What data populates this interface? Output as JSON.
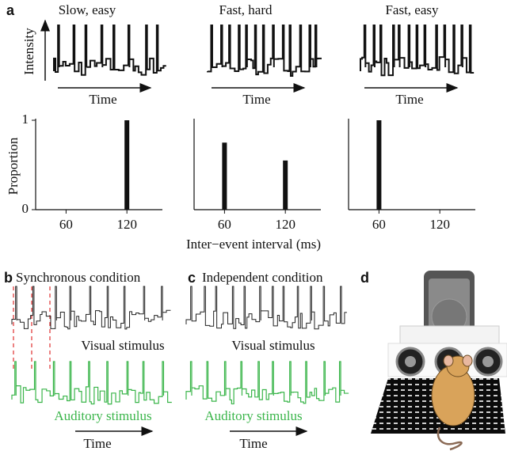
{
  "panel_a": {
    "label": "a",
    "traces": [
      {
        "ylabel": "Intensity",
        "xlabel": "Time"
      },
      {
        "xlabel": "Time"
      },
      {
        "xlabel": "Time"
      }
    ]
  },
  "chart_data": [
    {
      "type": "bar",
      "title": "Slow, easy",
      "x": [
        120
      ],
      "values": [
        1
      ],
      "color": "#111111",
      "xlim": [
        30,
        155
      ],
      "xticks": [
        60,
        120
      ],
      "ylim": [
        0,
        1
      ],
      "yticks": [
        0,
        1
      ],
      "ylabel": "Proportion"
    },
    {
      "type": "bar",
      "title": "Fast, hard",
      "x": [
        60,
        120
      ],
      "values": [
        0.75,
        0.55
      ],
      "color": "#111111",
      "xlim": [
        30,
        155
      ],
      "xticks": [
        60,
        120
      ],
      "ylim": [
        0,
        1
      ],
      "xlabel": "Inter−event interval (ms)"
    },
    {
      "type": "bar",
      "title": "Fast, easy",
      "x": [
        60
      ],
      "values": [
        1
      ],
      "color": "#111111",
      "xlim": [
        30,
        155
      ],
      "xticks": [
        60,
        120
      ],
      "ylim": [
        0,
        1
      ]
    }
  ],
  "panel_b": {
    "label": "b",
    "title": "Synchronous condition",
    "visual": "Visual stimulus",
    "auditory": "Auditory stimulus",
    "xlabel": "Time"
  },
  "panel_c": {
    "label": "c",
    "title": "Independent condition",
    "visual": "Visual stimulus",
    "auditory": "Auditory stimulus",
    "xlabel": "Time"
  },
  "panel_d": {
    "label": "d"
  }
}
